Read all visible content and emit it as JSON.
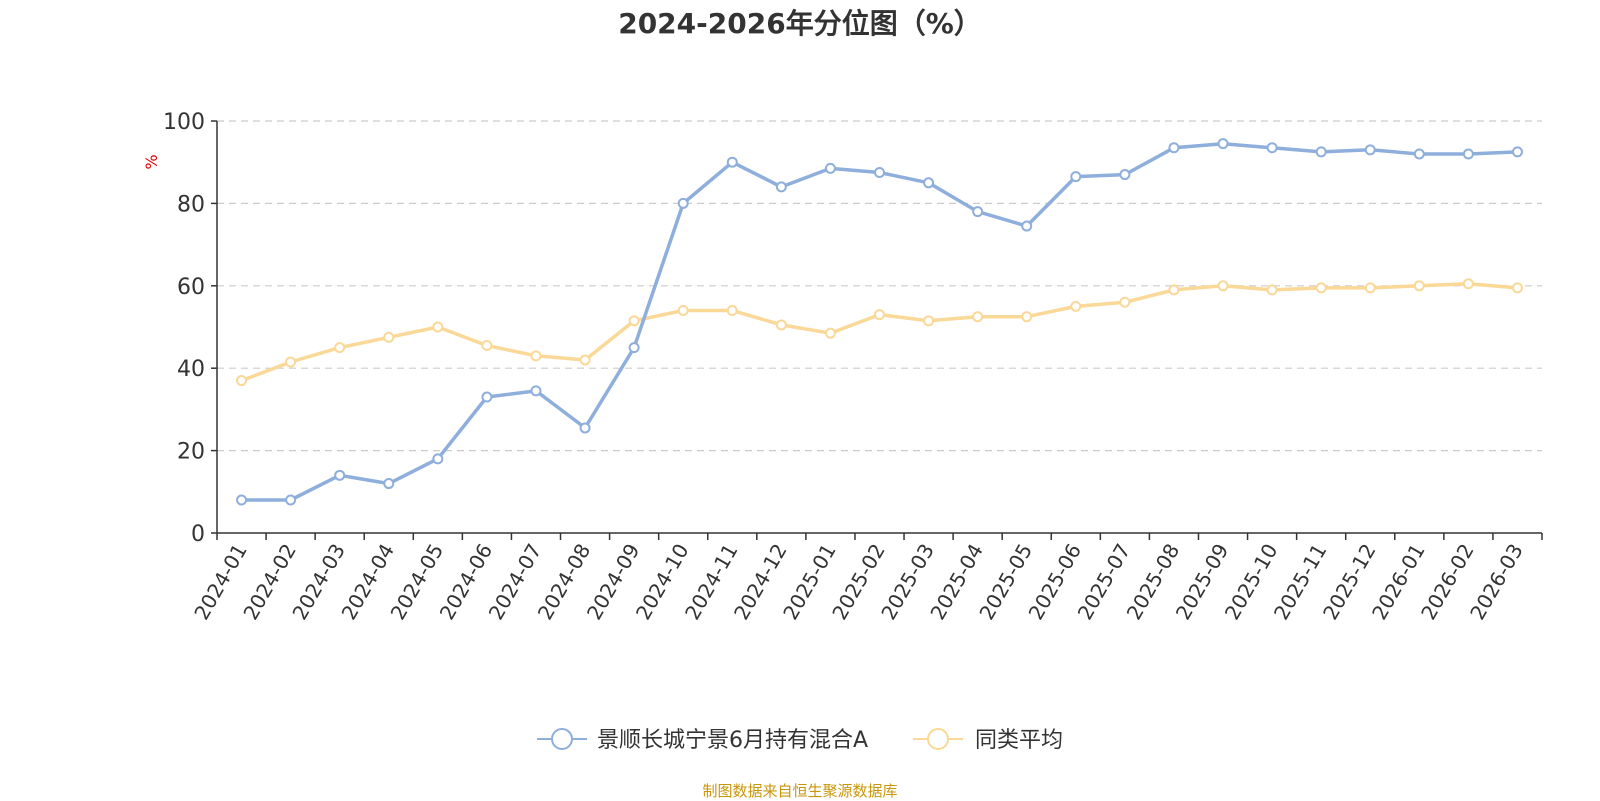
{
  "chart_data": {
    "type": "line",
    "title": "2024-2026年分位图（%）",
    "ylabel": "%",
    "xlabel": "",
    "ylim": [
      0,
      100
    ],
    "yticks": [
      0,
      20,
      40,
      60,
      80,
      100
    ],
    "grid": true,
    "legend_position": "bottom-center",
    "categories": [
      "2024-01",
      "2024-02",
      "2024-03",
      "2024-04",
      "2024-05",
      "2024-06",
      "2024-07",
      "2024-08",
      "2024-09",
      "2024-10",
      "2024-11",
      "2024-12",
      "2025-01",
      "2025-02",
      "2025-03",
      "2025-04",
      "2025-05",
      "2025-06",
      "2025-07",
      "2025-08",
      "2025-09",
      "2025-10",
      "2025-11",
      "2025-12",
      "2026-01",
      "2026-02",
      "2026-03"
    ],
    "series": [
      {
        "name": "景顺长城宁景6月持有混合A",
        "color": "#8eaedb",
        "values": [
          8,
          8,
          14,
          12,
          18,
          33,
          34.5,
          25.5,
          45,
          80,
          90,
          84,
          88.5,
          87.5,
          85,
          78,
          74.5,
          86.5,
          87,
          93.5,
          94.5,
          93.5,
          92.5,
          93,
          92,
          92,
          92.5
        ]
      },
      {
        "name": "同类平均",
        "color": "#fad897",
        "values": [
          37,
          41.5,
          45,
          47.5,
          50,
          45.5,
          43,
          42,
          51.5,
          54,
          54,
          50.5,
          48.5,
          53,
          51.5,
          52.5,
          52.5,
          55,
          56,
          59,
          60,
          59,
          59.5,
          59.5,
          60,
          60.5,
          59.5
        ]
      }
    ]
  },
  "footer": {
    "source_text": "制图数据来自恒生聚源数据库"
  }
}
